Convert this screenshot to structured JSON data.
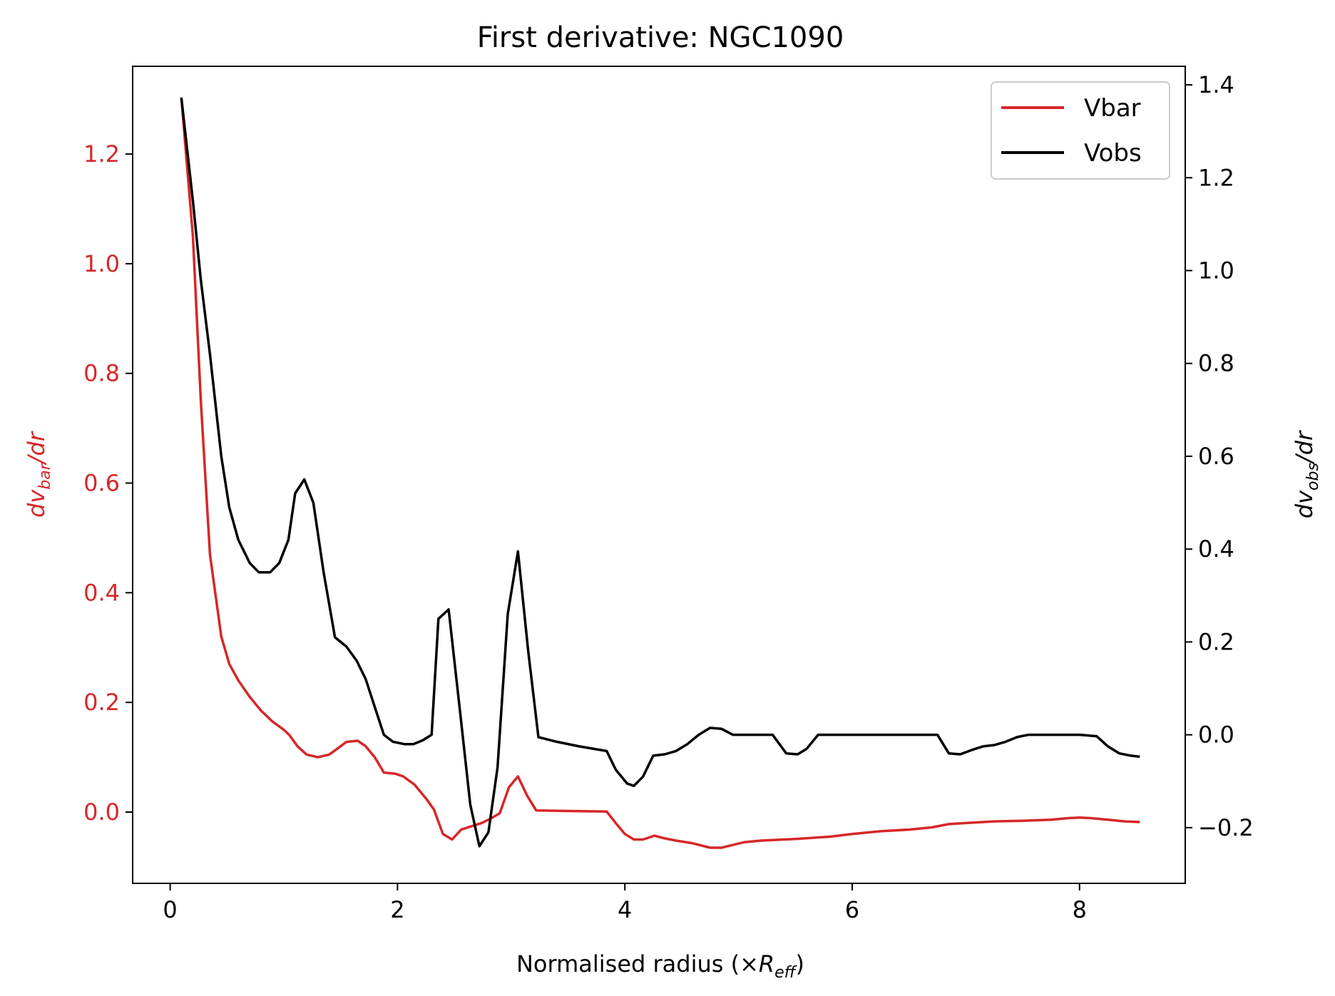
{
  "chart_data": {
    "type": "line",
    "title": "First derivative: NGC1090",
    "xlabel": {
      "main": "Normalised radius (×",
      "var": "R",
      "sub": "eff",
      "close": ")"
    },
    "ylabel_left": {
      "prefix": "dv",
      "sub": "bar",
      "suffix": "/dr"
    },
    "ylabel_right": {
      "prefix": "dv",
      "sub": "obs",
      "suffix": "/dr"
    },
    "xlim": [
      -0.33,
      8.93
    ],
    "ylim_left": [
      -0.13,
      1.36
    ],
    "ylim_right": [
      -0.32,
      1.44
    ],
    "xticks": [
      0,
      2,
      4,
      6,
      8
    ],
    "xtick_labels": [
      "0",
      "2",
      "4",
      "6",
      "8"
    ],
    "yticks_left": [
      0.0,
      0.2,
      0.4,
      0.6,
      0.8,
      1.0,
      1.2
    ],
    "ytick_labels_left": [
      "0.0",
      "0.2",
      "0.4",
      "0.6",
      "0.8",
      "1.0",
      "1.2"
    ],
    "yticks_right": [
      -0.2,
      0.0,
      0.2,
      0.4,
      0.6,
      0.8,
      1.0,
      1.2,
      1.4
    ],
    "ytick_labels_right": [
      "−0.2",
      "0.0",
      "0.2",
      "0.4",
      "0.6",
      "0.8",
      "1.0",
      "1.2",
      "1.4"
    ],
    "grid": false,
    "legend": {
      "placement": "top-right"
    },
    "colors": {
      "vbar": "#d62728",
      "vobs": "#000000",
      "left_axis": "#d62728"
    },
    "series": [
      {
        "name": "Vbar",
        "axis": "left",
        "color": "#d62728",
        "points": [
          [
            0.1,
            1.3
          ],
          [
            0.2,
            1.05
          ],
          [
            0.27,
            0.75
          ],
          [
            0.35,
            0.47
          ],
          [
            0.45,
            0.32
          ],
          [
            0.52,
            0.27
          ],
          [
            0.6,
            0.24
          ],
          [
            0.7,
            0.21
          ],
          [
            0.8,
            0.185
          ],
          [
            0.9,
            0.165
          ],
          [
            1.0,
            0.15
          ],
          [
            1.05,
            0.14
          ],
          [
            1.12,
            0.12
          ],
          [
            1.2,
            0.105
          ],
          [
            1.3,
            0.1
          ],
          [
            1.4,
            0.105
          ],
          [
            1.5,
            0.12
          ],
          [
            1.55,
            0.128
          ],
          [
            1.65,
            0.13
          ],
          [
            1.72,
            0.12
          ],
          [
            1.8,
            0.1
          ],
          [
            1.88,
            0.072
          ],
          [
            1.98,
            0.07
          ],
          [
            2.05,
            0.065
          ],
          [
            2.15,
            0.05
          ],
          [
            2.25,
            0.025
          ],
          [
            2.32,
            0.005
          ],
          [
            2.4,
            -0.04
          ],
          [
            2.48,
            -0.05
          ],
          [
            2.56,
            -0.032
          ],
          [
            2.65,
            -0.026
          ],
          [
            2.74,
            -0.02
          ],
          [
            2.82,
            -0.012
          ],
          [
            2.9,
            -0.002
          ],
          [
            2.98,
            0.045
          ],
          [
            3.06,
            0.065
          ],
          [
            3.14,
            0.03
          ],
          [
            3.22,
            0.003
          ],
          [
            3.5,
            0.002
          ],
          [
            3.84,
            0.001
          ],
          [
            3.92,
            -0.02
          ],
          [
            4.0,
            -0.04
          ],
          [
            4.08,
            -0.05
          ],
          [
            4.16,
            -0.05
          ],
          [
            4.26,
            -0.043
          ],
          [
            4.35,
            -0.048
          ],
          [
            4.45,
            -0.052
          ],
          [
            4.6,
            -0.057
          ],
          [
            4.75,
            -0.065
          ],
          [
            4.85,
            -0.065
          ],
          [
            5.05,
            -0.055
          ],
          [
            5.2,
            -0.052
          ],
          [
            5.5,
            -0.049
          ],
          [
            5.8,
            -0.045
          ],
          [
            6.0,
            -0.04
          ],
          [
            6.25,
            -0.035
          ],
          [
            6.5,
            -0.032
          ],
          [
            6.7,
            -0.028
          ],
          [
            6.85,
            -0.022
          ],
          [
            7.0,
            -0.02
          ],
          [
            7.25,
            -0.017
          ],
          [
            7.5,
            -0.016
          ],
          [
            7.75,
            -0.014
          ],
          [
            7.9,
            -0.011
          ],
          [
            8.0,
            -0.01
          ],
          [
            8.1,
            -0.011
          ],
          [
            8.25,
            -0.014
          ],
          [
            8.4,
            -0.017
          ],
          [
            8.52,
            -0.018
          ]
        ]
      },
      {
        "name": "Vobs",
        "axis": "right",
        "color": "#000000",
        "points": [
          [
            0.1,
            1.37
          ],
          [
            0.2,
            1.15
          ],
          [
            0.27,
            0.98
          ],
          [
            0.35,
            0.82
          ],
          [
            0.45,
            0.6
          ],
          [
            0.52,
            0.49
          ],
          [
            0.6,
            0.42
          ],
          [
            0.7,
            0.37
          ],
          [
            0.78,
            0.35
          ],
          [
            0.88,
            0.35
          ],
          [
            0.96,
            0.37
          ],
          [
            1.04,
            0.42
          ],
          [
            1.1,
            0.52
          ],
          [
            1.18,
            0.55
          ],
          [
            1.26,
            0.5
          ],
          [
            1.35,
            0.35
          ],
          [
            1.45,
            0.21
          ],
          [
            1.55,
            0.19
          ],
          [
            1.64,
            0.16
          ],
          [
            1.72,
            0.12
          ],
          [
            1.8,
            0.06
          ],
          [
            1.88,
            0.0
          ],
          [
            1.96,
            -0.015
          ],
          [
            2.06,
            -0.02
          ],
          [
            2.14,
            -0.02
          ],
          [
            2.22,
            -0.012
          ],
          [
            2.3,
            0.0
          ],
          [
            2.36,
            0.25
          ],
          [
            2.45,
            0.27
          ],
          [
            2.55,
            0.05
          ],
          [
            2.64,
            -0.15
          ],
          [
            2.72,
            -0.24
          ],
          [
            2.8,
            -0.21
          ],
          [
            2.88,
            -0.07
          ],
          [
            2.97,
            0.26
          ],
          [
            3.06,
            0.395
          ],
          [
            3.15,
            0.18
          ],
          [
            3.24,
            -0.005
          ],
          [
            3.4,
            -0.015
          ],
          [
            3.6,
            -0.025
          ],
          [
            3.84,
            -0.035
          ],
          [
            3.92,
            -0.075
          ],
          [
            4.02,
            -0.105
          ],
          [
            4.08,
            -0.11
          ],
          [
            4.16,
            -0.09
          ],
          [
            4.25,
            -0.045
          ],
          [
            4.35,
            -0.042
          ],
          [
            4.45,
            -0.035
          ],
          [
            4.55,
            -0.02
          ],
          [
            4.65,
            0.0
          ],
          [
            4.75,
            0.015
          ],
          [
            4.85,
            0.013
          ],
          [
            4.95,
            0.0
          ],
          [
            5.05,
            0.0
          ],
          [
            5.3,
            0.0
          ],
          [
            5.42,
            -0.04
          ],
          [
            5.52,
            -0.042
          ],
          [
            5.6,
            -0.03
          ],
          [
            5.7,
            0.0
          ],
          [
            6.0,
            0.0
          ],
          [
            6.5,
            0.0
          ],
          [
            6.75,
            0.0
          ],
          [
            6.85,
            -0.04
          ],
          [
            6.95,
            -0.042
          ],
          [
            7.05,
            -0.033
          ],
          [
            7.15,
            -0.025
          ],
          [
            7.25,
            -0.022
          ],
          [
            7.35,
            -0.015
          ],
          [
            7.45,
            -0.005
          ],
          [
            7.55,
            0.0
          ],
          [
            8.0,
            0.0
          ],
          [
            8.15,
            -0.003
          ],
          [
            8.25,
            -0.025
          ],
          [
            8.35,
            -0.04
          ],
          [
            8.45,
            -0.045
          ],
          [
            8.52,
            -0.047
          ]
        ]
      }
    ]
  }
}
